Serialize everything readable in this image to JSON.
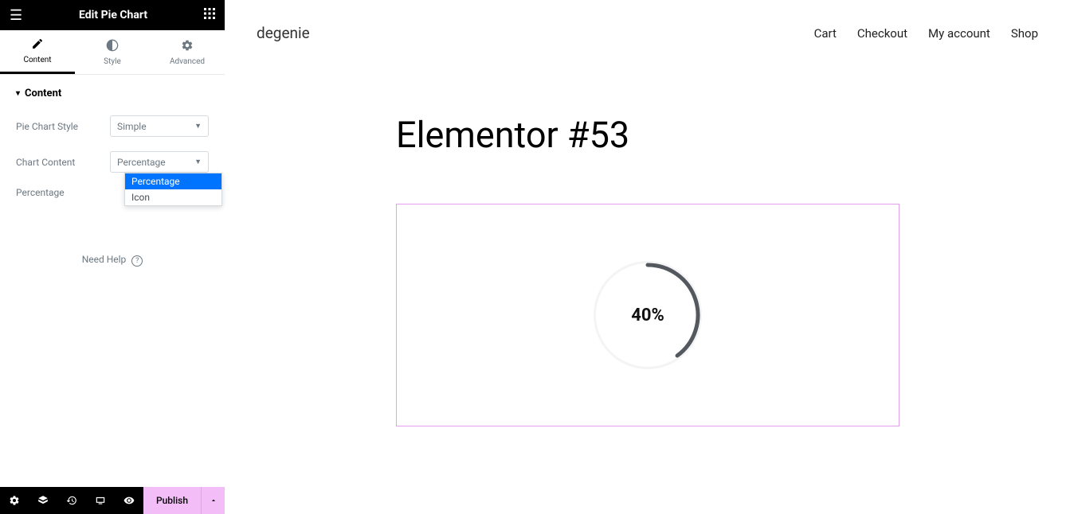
{
  "sidebar": {
    "title": "Edit Pie Chart",
    "tabs": [
      {
        "label": "Content",
        "active": true
      },
      {
        "label": "Style",
        "active": false
      },
      {
        "label": "Advanced",
        "active": false
      }
    ],
    "section_title": "Content",
    "controls": {
      "pie_chart_style": {
        "label": "Pie Chart Style",
        "value": "Simple"
      },
      "chart_content": {
        "label": "Chart Content",
        "value": "Percentage",
        "options": [
          "Percentage",
          "Icon"
        ],
        "highlighted_index": 0
      },
      "percentage": {
        "label": "Percentage"
      }
    },
    "need_help": "Need Help",
    "footer": {
      "publish": "Publish"
    }
  },
  "preview": {
    "site_name": "degenie",
    "nav": [
      "Cart",
      "Checkout",
      "My account",
      "Shop"
    ],
    "page_title": "Elementor #53",
    "pie_chart": {
      "type": "pie-progress",
      "percentage": 40,
      "display_text": "40%",
      "arc_color": "#54595f",
      "track_color": "#f4f4f4",
      "background": "#ffffff",
      "border_color": "#e59fef",
      "label_fontsize": 22,
      "label_color": "#111111",
      "arc_width": 5,
      "start_angle_deg": 0,
      "sweep_deg": 144
    }
  },
  "colors": {
    "black": "#000000",
    "muted": "#6d7882",
    "border": "#d5dadf",
    "highlight": "#0073ff",
    "publish_bg": "#f3bdf7"
  }
}
